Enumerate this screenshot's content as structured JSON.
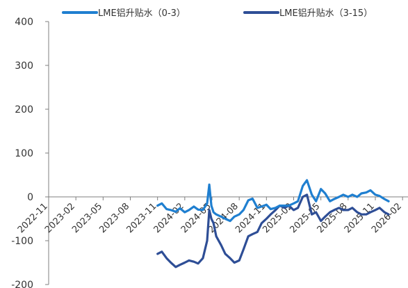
{
  "chart_data": {
    "type": "line",
    "title": "",
    "xlabel": "",
    "ylabel": "",
    "ylim": [
      -200,
      400
    ],
    "yticks": [
      400,
      300,
      200,
      100,
      0,
      -100,
      -200
    ],
    "x_tick_labels": [
      "2022-11",
      "2023-02",
      "2023-05",
      "2023-08",
      "2023-11",
      "2024-02",
      "2024-05",
      "2024-08",
      "2024-11",
      "2025-02",
      "2025-05",
      "2025-08",
      "2025-11",
      "2026-02"
    ],
    "x_start": "2022-11",
    "x_end": "2026-02",
    "grid": false,
    "legend_position": "top",
    "series": [
      {
        "name": "LME铝升贴水（0-3）",
        "color": "#1f7fd0",
        "x": [
          "2023-11-01",
          "2023-11-15",
          "2023-12-01",
          "2023-12-15",
          "2024-01-01",
          "2024-01-15",
          "2024-02-01",
          "2024-02-15",
          "2024-03-01",
          "2024-03-15",
          "2024-04-01",
          "2024-04-15",
          "2024-04-22",
          "2024-04-29",
          "2024-05-06",
          "2024-05-15",
          "2024-06-01",
          "2024-06-15",
          "2024-07-01",
          "2024-07-15",
          "2024-08-01",
          "2024-08-15",
          "2024-09-01",
          "2024-09-15",
          "2024-10-01",
          "2024-10-15",
          "2024-11-01",
          "2024-11-15",
          "2024-12-01",
          "2024-12-15",
          "2025-01-01",
          "2025-01-15",
          "2025-02-01",
          "2025-02-15",
          "2025-03-01",
          "2025-03-15",
          "2025-04-01",
          "2025-04-15",
          "2025-05-01",
          "2025-05-15",
          "2025-06-01",
          "2025-06-15",
          "2025-07-01",
          "2025-07-15",
          "2025-08-01",
          "2025-08-15",
          "2025-09-01",
          "2025-09-15",
          "2025-10-01",
          "2025-10-15",
          "2025-11-01",
          "2025-11-15",
          "2025-12-01",
          "2025-12-15"
        ],
        "values": [
          -20,
          -15,
          -28,
          -30,
          -34,
          -26,
          -35,
          -30,
          -22,
          -29,
          -30,
          -15,
          28,
          -20,
          -35,
          -40,
          -45,
          -50,
          -55,
          -45,
          -40,
          -30,
          -8,
          -4,
          -25,
          -22,
          -18,
          -28,
          -25,
          -20,
          -20,
          -20,
          -15,
          -10,
          25,
          38,
          5,
          -10,
          18,
          8,
          -10,
          -5,
          0,
          5,
          0,
          5,
          0,
          8,
          10,
          15,
          5,
          2,
          -5,
          -10
        ]
      },
      {
        "name": "LME铝升贴水（3-15）",
        "color": "#2e4e96",
        "x": [
          "2023-11-01",
          "2023-11-15",
          "2023-12-01",
          "2023-12-15",
          "2024-01-01",
          "2024-01-15",
          "2024-02-01",
          "2024-02-15",
          "2024-03-01",
          "2024-03-15",
          "2024-04-01",
          "2024-04-15",
          "2024-04-22",
          "2024-04-29",
          "2024-05-06",
          "2024-05-15",
          "2024-06-01",
          "2024-06-15",
          "2024-07-01",
          "2024-07-15",
          "2024-08-01",
          "2024-08-15",
          "2024-09-01",
          "2024-09-15",
          "2024-10-01",
          "2024-10-15",
          "2024-11-01",
          "2024-11-15",
          "2024-12-01",
          "2024-12-15",
          "2025-01-01",
          "2025-01-15",
          "2025-02-01",
          "2025-02-15",
          "2025-03-01",
          "2025-03-15",
          "2025-04-01",
          "2025-04-15",
          "2025-05-01",
          "2025-05-15",
          "2025-06-01",
          "2025-06-15",
          "2025-07-01",
          "2025-07-15",
          "2025-08-01",
          "2025-08-15",
          "2025-09-01",
          "2025-09-15",
          "2025-10-01",
          "2025-10-15",
          "2025-11-01",
          "2025-11-15",
          "2025-12-01",
          "2025-12-15"
        ],
        "values": [
          -130,
          -125,
          -140,
          -150,
          -160,
          -155,
          -150,
          -145,
          -148,
          -152,
          -140,
          -100,
          -30,
          -50,
          -60,
          -90,
          -110,
          -130,
          -140,
          -150,
          -145,
          -120,
          -90,
          -85,
          -80,
          -60,
          -50,
          -40,
          -30,
          -20,
          -25,
          -20,
          -30,
          -25,
          0,
          5,
          -40,
          -35,
          -55,
          -45,
          -35,
          -30,
          -25,
          -30,
          -30,
          -25,
          -35,
          -40,
          -40,
          -35,
          -30,
          -25,
          -35,
          -40
        ]
      }
    ]
  }
}
